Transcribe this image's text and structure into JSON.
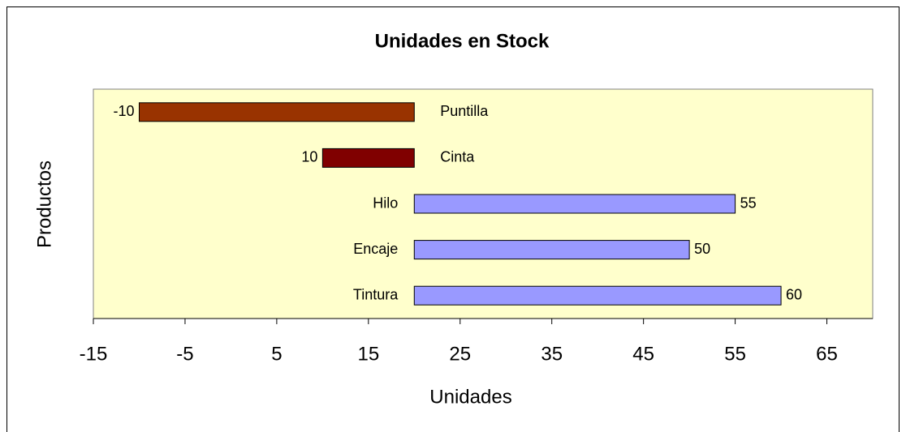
{
  "chart_data": {
    "type": "bar",
    "orientation": "horizontal",
    "title": "Unidades en Stock",
    "x_label": "Unidades",
    "y_label": "Productos",
    "categories": [
      "Puntilla",
      "Cinta",
      "Hilo",
      "Encaje",
      "Tintura"
    ],
    "values": [
      -10,
      10,
      55,
      50,
      60
    ],
    "colors": [
      "#993300",
      "#800000",
      "#9999ff",
      "#9999ff",
      "#9999ff"
    ],
    "value_axis_crosses": 20,
    "xlim": [
      -15,
      70
    ],
    "xticks": [
      -15,
      -5,
      5,
      15,
      25,
      35,
      45,
      55,
      65
    ],
    "negative_tick_color": "#ff0000",
    "plot_background": "#ffffcc",
    "grid": false
  }
}
